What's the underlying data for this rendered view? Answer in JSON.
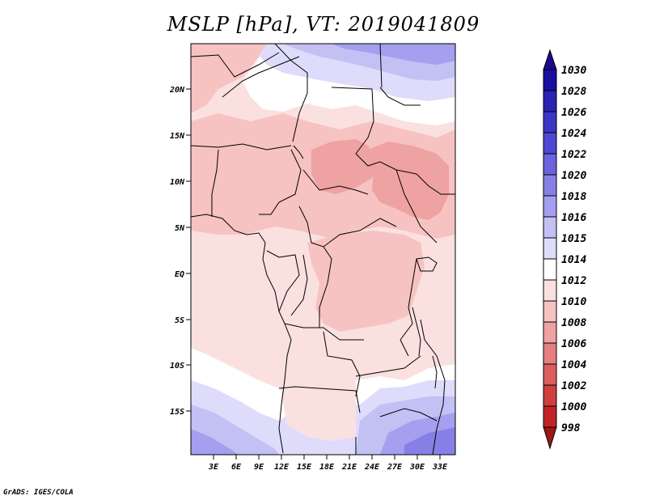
{
  "title": "MSLP [hPa], VT: 2019041809",
  "footer": "GrADS: IGES/COLA",
  "map": {
    "lon_range": [
      0,
      35
    ],
    "lat_range": [
      -20,
      25
    ],
    "lon_ticks": [
      "3E",
      "6E",
      "9E",
      "12E",
      "15E",
      "18E",
      "21E",
      "24E",
      "27E",
      "30E",
      "33E"
    ],
    "lat_ticks": [
      "20N",
      "15N",
      "10N",
      "5N",
      "EQ",
      "5S",
      "10S",
      "15S"
    ]
  },
  "colorbar": {
    "levels": [
      "1030",
      "1028",
      "1026",
      "1024",
      "1022",
      "1020",
      "1018",
      "1016",
      "1015",
      "1014",
      "1012",
      "1010",
      "1008",
      "1006",
      "1004",
      "1002",
      "1000",
      "998"
    ],
    "colors": [
      "#1a0fa0",
      "#2a22b4",
      "#3c35c6",
      "#5048d4",
      "#6a62de",
      "#8680e6",
      "#a49fee",
      "#c3c0f4",
      "#dedcfa",
      "#ffffff",
      "#fbe0e0",
      "#f6c2c2",
      "#efa2a2",
      "#e68080",
      "#dc5e5e",
      "#d03e3e",
      "#c02424",
      "#a80e0e"
    ],
    "top_color": "#1a0a8c",
    "bottom_color": "#9c1818"
  },
  "fields": {
    "bg": "#fbe0e0",
    "c1010": "#f6c2c2",
    "c1008": "#efa2a2",
    "c1014": "#ffffff",
    "c1015": "#dedcfa",
    "c1016": "#c3c0f4",
    "c1018": "#a49fee",
    "c1020": "#8680e6"
  }
}
